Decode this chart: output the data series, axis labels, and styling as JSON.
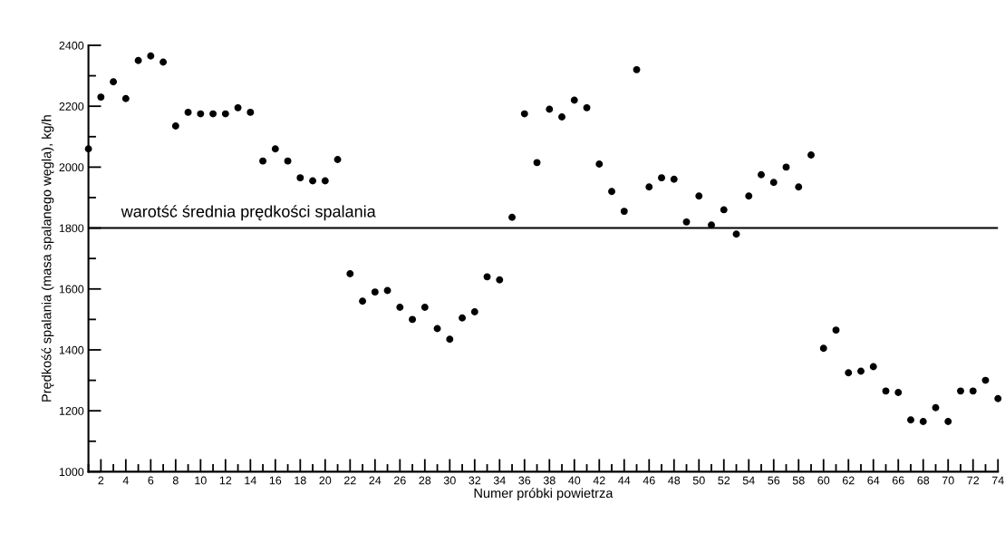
{
  "chart_data": {
    "type": "scatter",
    "xlabel": "Numer próbki powietrza",
    "ylabel": "Prędkość spalania (masa spalanego węgla), kg/h",
    "x": [
      1,
      2,
      3,
      4,
      5,
      6,
      7,
      8,
      9,
      10,
      11,
      12,
      13,
      14,
      15,
      16,
      17,
      18,
      19,
      20,
      21,
      22,
      23,
      24,
      25,
      26,
      27,
      28,
      29,
      30,
      31,
      32,
      33,
      34,
      35,
      36,
      37,
      38,
      39,
      40,
      41,
      42,
      43,
      44,
      45,
      46,
      47,
      48,
      49,
      50,
      51,
      52,
      53,
      54,
      55,
      56,
      57,
      58,
      59,
      60,
      61,
      62,
      63,
      64,
      65,
      66,
      67,
      68,
      69,
      70,
      71,
      72,
      73,
      74
    ],
    "series": [
      {
        "color": "#000000",
        "values": [
          2060,
          2230,
          2280,
          2225,
          2350,
          2365,
          2345,
          2135,
          2180,
          2175,
          2175,
          2175,
          2195,
          2180,
          2020,
          2060,
          2020,
          1965,
          1955,
          1955,
          2025,
          1650,
          1560,
          1590,
          1595,
          1540,
          1500,
          1540,
          1470,
          1435,
          1505,
          1525,
          1640,
          1630,
          1835,
          2175,
          2015,
          2190,
          2165,
          2220,
          2195,
          2010,
          1920,
          1855,
          2320,
          1935,
          1965,
          1960,
          1820,
          1905,
          1810,
          1860,
          1780,
          1905,
          1975,
          1950,
          2000,
          1935,
          2040,
          1405,
          1465,
          1325,
          1330,
          1345,
          1265,
          1260,
          1170,
          1165,
          1210,
          1165,
          1265,
          1265,
          1300,
          1240
        ]
      }
    ],
    "marker": "circle",
    "xlim": [
      1,
      74
    ],
    "xticks": [
      {
        "value": 1,
        "label": null
      },
      2,
      {
        "value": 3,
        "label": null
      },
      4,
      {
        "value": 5,
        "label": null
      },
      6,
      {
        "value": 7,
        "label": null
      },
      8,
      {
        "value": 9,
        "label": null
      },
      10,
      {
        "value": 11,
        "label": null
      },
      12,
      {
        "value": 13,
        "label": null
      },
      14,
      {
        "value": 15,
        "label": null
      },
      16,
      {
        "value": 17,
        "label": null
      },
      18,
      {
        "value": 19,
        "label": null
      },
      20,
      {
        "value": 21,
        "label": null
      },
      22,
      {
        "value": 23,
        "label": null
      },
      24,
      {
        "value": 25,
        "label": null
      },
      26,
      {
        "value": 27,
        "label": null
      },
      28,
      {
        "value": 29,
        "label": null
      },
      30,
      {
        "value": 31,
        "label": null
      },
      32,
      {
        "value": 33,
        "label": null
      },
      34,
      {
        "value": 35,
        "label": null
      },
      36,
      {
        "value": 37,
        "label": null
      },
      38,
      {
        "value": 39,
        "label": null
      },
      40,
      {
        "value": 41,
        "label": null
      },
      42,
      {
        "value": 43,
        "label": null
      },
      44,
      {
        "value": 45,
        "label": null
      },
      46,
      {
        "value": 47,
        "label": null
      },
      48,
      {
        "value": 49,
        "label": null
      },
      50,
      {
        "value": 51,
        "label": null
      },
      52,
      {
        "value": 53,
        "label": null
      },
      54,
      {
        "value": 55,
        "label": null
      },
      56,
      {
        "value": 57,
        "label": null
      },
      58,
      {
        "value": 59,
        "label": null
      },
      60,
      {
        "value": 61,
        "label": null
      },
      62,
      {
        "value": 63,
        "label": null
      },
      64,
      {
        "value": 65,
        "label": null
      },
      66,
      {
        "value": 67,
        "label": null
      },
      68,
      {
        "value": 69,
        "label": null
      },
      70,
      {
        "value": 71,
        "label": null
      },
      72,
      {
        "value": 73,
        "label": null
      },
      74
    ],
    "ylim": [
      1000,
      2400
    ],
    "yticks": [
      1000,
      {
        "value": 1100,
        "label": null
      },
      1200,
      {
        "value": 1300,
        "label": null
      },
      1400,
      {
        "value": 1500,
        "label": null
      },
      1600,
      {
        "value": 1700,
        "label": null
      },
      1800,
      {
        "value": 1900,
        "label": null
      },
      2000,
      {
        "value": 2100,
        "label": null
      },
      2200,
      {
        "value": 2300,
        "label": null
      },
      2400
    ],
    "ref_lines": [
      {
        "axis": "y",
        "value": 1800,
        "label": "warotść średnia prędkości spalania",
        "color": "#000000",
        "line_style": "solid"
      }
    ],
    "grid": false,
    "legend": false
  }
}
